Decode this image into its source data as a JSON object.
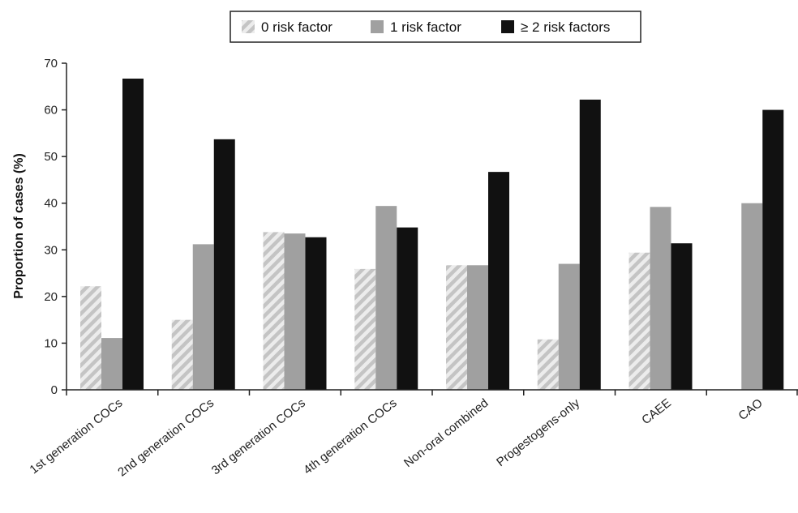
{
  "chart_data": {
    "type": "bar",
    "title": "",
    "xlabel": "",
    "ylabel": "Proportion of cases (%)",
    "ylim": [
      0,
      70
    ],
    "yticks": [
      0,
      10,
      20,
      30,
      40,
      50,
      60,
      70
    ],
    "grid": false,
    "legend_position": "top-center",
    "categories": [
      "1st generation COCs",
      "2nd generation COCs",
      "3rd generation COCs",
      "4th generation COCs",
      "Non-oral combined",
      "Progestogens-only",
      "CAEE",
      "CAO"
    ],
    "series": [
      {
        "name": "0 risk factor",
        "values": [
          22.2,
          15.0,
          33.8,
          25.9,
          26.7,
          10.8,
          29.4,
          0
        ],
        "color": "#d9d9d9",
        "pattern": "hatched"
      },
      {
        "name": "1 risk factor",
        "values": [
          11.1,
          31.2,
          33.5,
          39.4,
          26.7,
          27.0,
          39.2,
          40.0
        ],
        "color": "#a0a0a0",
        "pattern": "solid"
      },
      {
        "name": "≥ 2 risk factors",
        "values": [
          66.7,
          53.7,
          32.7,
          34.8,
          46.7,
          62.2,
          31.4,
          60.0
        ],
        "color": "#111111",
        "pattern": "solid"
      }
    ]
  }
}
